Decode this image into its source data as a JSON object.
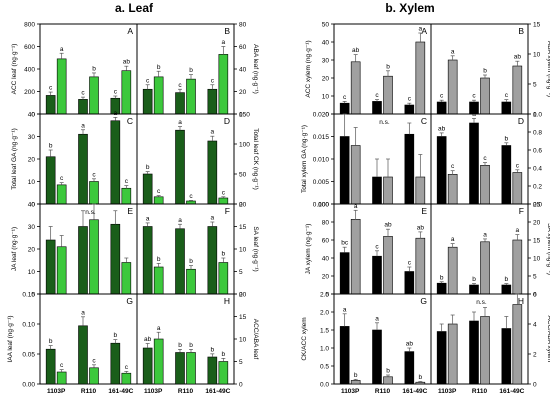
{
  "groups": [
    {
      "title": "a. Leaf",
      "colors": [
        "#1a5e1a",
        "#3cc83c"
      ]
    },
    {
      "title": "b. Xylem",
      "colors": [
        "#000000",
        "#a0a0a0"
      ]
    }
  ],
  "chart_data": [
    {
      "type": "bar",
      "group": 0,
      "col": 0,
      "row": 0,
      "letter": "A",
      "ylabel": "ACC leaf (ng·g⁻¹)",
      "ylim": [
        0,
        800
      ],
      "yticks": [
        0,
        200,
        400,
        600,
        800
      ],
      "categories": [
        "1103P",
        "R110",
        "161-49C"
      ],
      "values": [
        [
          165,
          490
        ],
        [
          130,
          330
        ],
        [
          140,
          385
        ]
      ],
      "errors": [
        [
          30,
          50
        ],
        [
          20,
          35
        ],
        [
          20,
          40
        ]
      ],
      "sig": [
        [
          "c",
          "a"
        ],
        [
          "c",
          "b"
        ],
        [
          "c",
          "ab"
        ]
      ],
      "ns": ""
    },
    {
      "type": "bar",
      "group": 0,
      "col": 1,
      "row": 0,
      "letter": "B",
      "ylabel": "ABA leaf (ng·g⁻¹)",
      "ylim": [
        0,
        80
      ],
      "yticks": [
        0,
        20,
        40,
        60,
        80
      ],
      "categories": [
        "1103P",
        "R110",
        "161-49C"
      ],
      "values": [
        [
          22,
          33
        ],
        [
          19,
          31
        ],
        [
          22,
          53
        ]
      ],
      "errors": [
        [
          4,
          5
        ],
        [
          3,
          4
        ],
        [
          4,
          7
        ]
      ],
      "sig": [
        [
          "c",
          "b"
        ],
        [
          "c",
          "b"
        ],
        [
          "c",
          "a"
        ]
      ],
      "ns": ""
    },
    {
      "type": "bar",
      "group": 0,
      "col": 0,
      "row": 1,
      "letter": "C",
      "ylabel": "Total leaf GA (ng·g⁻¹)",
      "ylim": [
        0,
        40
      ],
      "yticks": [
        0,
        10,
        20,
        30,
        40
      ],
      "categories": [
        "1103P",
        "R110",
        "161-49C"
      ],
      "values": [
        [
          21,
          8.5
        ],
        [
          31,
          10
        ],
        [
          37,
          7
        ]
      ],
      "errors": [
        [
          3,
          1
        ],
        [
          2,
          1.2
        ],
        [
          1.5,
          1.2
        ]
      ],
      "sig": [
        [
          "b",
          "c"
        ],
        [
          "a",
          "c"
        ],
        [
          "a",
          "c"
        ]
      ],
      "ns": ""
    },
    {
      "type": "bar",
      "group": 0,
      "col": 1,
      "row": 1,
      "letter": "D",
      "ylabel": "Total leaf CK (ng·g⁻¹)",
      "ylim": [
        0,
        150
      ],
      "yticks": [
        0,
        50,
        100,
        150
      ],
      "categories": [
        "1103P",
        "R110",
        "161-49C"
      ],
      "values": [
        [
          50,
          12
        ],
        [
          123,
          5
        ],
        [
          105,
          10
        ]
      ],
      "errors": [
        [
          4,
          2
        ],
        [
          6,
          1
        ],
        [
          8,
          2
        ]
      ],
      "sig": [
        [
          "b",
          "c"
        ],
        [
          "a",
          "c"
        ],
        [
          "a",
          "c"
        ]
      ],
      "ns": ""
    },
    {
      "type": "bar",
      "group": 0,
      "col": 0,
      "row": 2,
      "letter": "E",
      "ylabel": "JA leaf (ng·g⁻¹)",
      "ylim": [
        0,
        40
      ],
      "yticks": [
        0,
        10,
        20,
        30,
        40
      ],
      "categories": [
        "1103P",
        "R110",
        "161-49C"
      ],
      "values": [
        [
          24,
          21
        ],
        [
          30,
          33
        ],
        [
          31,
          14
        ]
      ],
      "errors": [
        [
          6,
          5
        ],
        [
          7,
          9
        ],
        [
          6,
          2
        ]
      ],
      "sig": [
        [
          "",
          ""
        ],
        [
          "",
          ""
        ],
        [
          "",
          ""
        ]
      ],
      "ns": "n.s."
    },
    {
      "type": "bar",
      "group": 0,
      "col": 1,
      "row": 2,
      "letter": "F",
      "ylabel": "SA leaf (ng·g⁻¹)",
      "ylim": [
        0,
        20
      ],
      "yticks": [
        0,
        5,
        10,
        15,
        20
      ],
      "categories": [
        "1103P",
        "R110",
        "161-49C"
      ],
      "values": [
        [
          15,
          6
        ],
        [
          14.5,
          5.5
        ],
        [
          15,
          7
        ]
      ],
      "errors": [
        [
          0.8,
          0.8
        ],
        [
          1,
          0.8
        ],
        [
          1,
          1
        ]
      ],
      "sig": [
        [
          "a",
          "b"
        ],
        [
          "a",
          "b"
        ],
        [
          "a",
          "b"
        ]
      ],
      "ns": ""
    },
    {
      "type": "bar",
      "group": 0,
      "col": 0,
      "row": 3,
      "letter": "G",
      "ylabel": "IAA leaf (ng·g⁻¹)",
      "ylim": [
        0,
        0.15
      ],
      "yticks": [
        0,
        0.05,
        0.1,
        0.15
      ],
      "ytickfmt": 2,
      "categories": [
        "1103P",
        "R110",
        "161-49C"
      ],
      "values": [
        [
          0.058,
          0.02
        ],
        [
          0.097,
          0.027
        ],
        [
          0.068,
          0.018
        ]
      ],
      "errors": [
        [
          0.006,
          0.004
        ],
        [
          0.015,
          0.005
        ],
        [
          0.006,
          0.003
        ]
      ],
      "sig": [
        [
          "b",
          "c"
        ],
        [
          "a",
          "c"
        ],
        [
          "b",
          "c"
        ]
      ],
      "ns": ""
    },
    {
      "type": "bar",
      "group": 0,
      "col": 1,
      "row": 3,
      "letter": "H",
      "ylabel": "ACC/ABA leaf",
      "ylim": [
        0,
        20
      ],
      "yticks": [
        0,
        5,
        10,
        15,
        20
      ],
      "categories": [
        "1103P",
        "R110",
        "161-49C"
      ],
      "values": [
        [
          8,
          10
        ],
        [
          7,
          7
        ],
        [
          6,
          5
        ]
      ],
      "errors": [
        [
          1,
          1.5
        ],
        [
          0.7,
          0.7
        ],
        [
          0.7,
          0.7
        ]
      ],
      "sig": [
        [
          "ab",
          "a"
        ],
        [
          "b",
          "b"
        ],
        [
          "b",
          "b"
        ]
      ],
      "ns": ""
    },
    {
      "type": "bar",
      "group": 1,
      "col": 0,
      "row": 0,
      "letter": "A",
      "ylabel": "ACC xylem (ng·g⁻¹)",
      "ylim": [
        0,
        50
      ],
      "yticks": [
        0,
        10,
        20,
        30,
        40,
        50
      ],
      "categories": [
        "1103P",
        "R110",
        "161-49C"
      ],
      "values": [
        [
          6,
          29
        ],
        [
          7,
          21
        ],
        [
          5,
          40
        ]
      ],
      "errors": [
        [
          1,
          4
        ],
        [
          1,
          3
        ],
        [
          1,
          5
        ]
      ],
      "sig": [
        [
          "c",
          "ab"
        ],
        [
          "c",
          "b"
        ],
        [
          "c",
          "a"
        ]
      ],
      "ns": ""
    },
    {
      "type": "bar",
      "group": 1,
      "col": 1,
      "row": 0,
      "letter": "B",
      "ylabel": "ABA xylem (ng·g⁻¹)",
      "ylim": [
        0,
        15
      ],
      "yticks": [
        0,
        5,
        10,
        15
      ],
      "categories": [
        "1103P",
        "R110",
        "161-49C"
      ],
      "values": [
        [
          2,
          9
        ],
        [
          2,
          6
        ],
        [
          2,
          8
        ]
      ],
      "errors": [
        [
          0.3,
          0.7
        ],
        [
          0.3,
          0.5
        ],
        [
          0.4,
          0.8
        ]
      ],
      "sig": [
        [
          "c",
          "a"
        ],
        [
          "c",
          "b"
        ],
        [
          "c",
          "ab"
        ]
      ],
      "ns": ""
    },
    {
      "type": "bar",
      "group": 1,
      "col": 0,
      "row": 1,
      "letter": "C",
      "ylabel": "Total xylem GA (ng·g⁻¹)",
      "ylim": [
        0,
        0.02
      ],
      "yticks": [
        0,
        0.005,
        0.01,
        0.015,
        0.02
      ],
      "ytickfmt": 3,
      "categories": [
        "1103P",
        "R110",
        "161-49C"
      ],
      "values": [
        [
          0.015,
          0.013
        ],
        [
          0.006,
          0.006
        ],
        [
          0.0155,
          0.006
        ]
      ],
      "errors": [
        [
          0.0055,
          0.004
        ],
        [
          0.004,
          0.004
        ],
        [
          0.0025,
          0.005
        ]
      ],
      "sig": [
        [
          "",
          ""
        ],
        [
          "",
          ""
        ],
        [
          "",
          ""
        ]
      ],
      "ns": "n.s."
    },
    {
      "type": "bar",
      "group": 1,
      "col": 1,
      "row": 1,
      "letter": "D",
      "ylabel": "Total xylem CK (ng·g⁻¹)",
      "ylim": [
        0,
        1
      ],
      "yticks": [
        0,
        0.2,
        0.4,
        0.6,
        0.8,
        1.0
      ],
      "ytickfmt": 1,
      "categories": [
        "1103P",
        "R110",
        "161-49C"
      ],
      "values": [
        [
          0.75,
          0.33
        ],
        [
          0.9,
          0.43
        ],
        [
          0.65,
          0.35
        ]
      ],
      "errors": [
        [
          0.04,
          0.04
        ],
        [
          0.05,
          0.03
        ],
        [
          0.03,
          0.03
        ]
      ],
      "sig": [
        [
          "ab",
          "c"
        ],
        [
          "a",
          "c"
        ],
        [
          "b",
          "c"
        ]
      ],
      "ns": ""
    },
    {
      "type": "bar",
      "group": 1,
      "col": 0,
      "row": 2,
      "letter": "E",
      "ylabel": "JA xylem (ng·g⁻¹)",
      "ylim": [
        0,
        100
      ],
      "yticks": [
        0,
        20,
        40,
        60,
        80,
        100
      ],
      "categories": [
        "1103P",
        "R110",
        "161-49C"
      ],
      "values": [
        [
          46,
          83
        ],
        [
          42,
          64
        ],
        [
          25,
          62
        ]
      ],
      "errors": [
        [
          6,
          10
        ],
        [
          6,
          8
        ],
        [
          5,
          7
        ]
      ],
      "sig": [
        [
          "bc",
          "a"
        ],
        [
          "c",
          "ab"
        ],
        [
          "c",
          "ab"
        ]
      ],
      "ns": ""
    },
    {
      "type": "bar",
      "group": 1,
      "col": 1,
      "row": 2,
      "letter": "F",
      "ylabel": "SA xylem (ng·g⁻¹)",
      "ylim": [
        0,
        25
      ],
      "yticks": [
        0,
        5,
        10,
        15,
        20,
        25
      ],
      "categories": [
        "1103P",
        "R110",
        "161-49C"
      ],
      "values": [
        [
          3,
          13
        ],
        [
          2.5,
          14.5
        ],
        [
          2.5,
          15
        ]
      ],
      "errors": [
        [
          0.4,
          1
        ],
        [
          0.4,
          0.8
        ],
        [
          0.4,
          1.5
        ]
      ],
      "sig": [
        [
          "b",
          "a"
        ],
        [
          "b",
          "a"
        ],
        [
          "b",
          "a"
        ]
      ],
      "ns": ""
    },
    {
      "type": "bar",
      "group": 1,
      "col": 0,
      "row": 3,
      "letter": "G",
      "ylabel": "CK/ACC xylem",
      "ylim": [
        0,
        2.5
      ],
      "yticks": [
        0,
        0.5,
        1.0,
        1.5,
        2.0,
        2.5
      ],
      "ytickfmt": 1,
      "categories": [
        "1103P",
        "R110",
        "161-49C"
      ],
      "values": [
        [
          1.6,
          0.1
        ],
        [
          1.5,
          0.2
        ],
        [
          0.9,
          0.05
        ]
      ],
      "errors": [
        [
          0.35,
          0.03
        ],
        [
          0.2,
          0.05
        ],
        [
          0.1,
          0.02
        ]
      ],
      "sig": [
        [
          "a",
          "b"
        ],
        [
          "a",
          "b"
        ],
        [
          "ab",
          "b"
        ]
      ],
      "ns": ""
    },
    {
      "type": "bar",
      "group": 1,
      "col": 1,
      "row": 3,
      "letter": "H",
      "ylabel": "ACC/ABA xylem",
      "ylim": [
        0,
        6
      ],
      "yticks": [
        0,
        2,
        4,
        6
      ],
      "categories": [
        "1103P",
        "R110",
        "161-49C"
      ],
      "values": [
        [
          3.5,
          4
        ],
        [
          4.2,
          4.5
        ],
        [
          3.7,
          5.3
        ]
      ],
      "errors": [
        [
          0.5,
          0.6
        ],
        [
          0.6,
          0.6
        ],
        [
          0.8,
          1.0
        ]
      ],
      "sig": [
        [
          "",
          ""
        ],
        [
          "",
          ""
        ],
        [
          "",
          ""
        ]
      ],
      "ns": "n.s."
    }
  ]
}
